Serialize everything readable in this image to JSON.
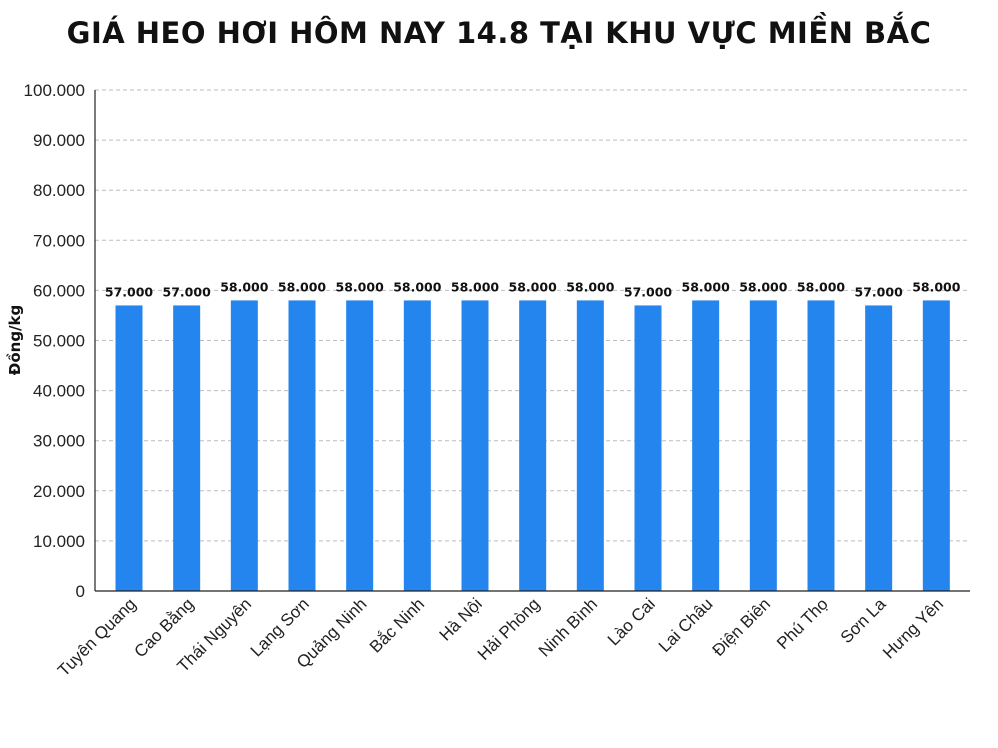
{
  "chart_data": {
    "type": "bar",
    "title": "GIÁ HEO HƠI HÔM NAY 14.8 TẠI KHU VỰC MIỀN BẮC",
    "xlabel": "",
    "ylabel": "Đồng/kg",
    "ylim": [
      0,
      100000
    ],
    "yticks": [
      0,
      10000,
      20000,
      30000,
      40000,
      50000,
      60000,
      70000,
      80000,
      90000,
      100000
    ],
    "ytick_labels": [
      "0",
      "10.000",
      "20.000",
      "30.000",
      "40.000",
      "50.000",
      "60.000",
      "70.000",
      "80.000",
      "90.000",
      "100.000"
    ],
    "categories": [
      "Tuyên Quang",
      "Cao Bằng",
      "Thái Nguyên",
      "Lạng Sơn",
      "Quảng Ninh",
      "Bắc Ninh",
      "Hà Nội",
      "Hải Phòng",
      "Ninh Bình",
      "Lào Cai",
      "Lai Châu",
      "Điện Biên",
      "Phú Thọ",
      "Sơn La",
      "Hưng Yên"
    ],
    "values": [
      57000,
      57000,
      58000,
      58000,
      58000,
      58000,
      58000,
      58000,
      58000,
      57000,
      58000,
      58000,
      58000,
      57000,
      58000
    ],
    "value_labels": [
      "57.000",
      "57.000",
      "58.000",
      "58.000",
      "58.000",
      "58.000",
      "58.000",
      "58.000",
      "58.000",
      "57.000",
      "58.000",
      "58.000",
      "58.000",
      "57.000",
      "58.000"
    ],
    "bar_color": "#2585ee",
    "grid": true
  }
}
